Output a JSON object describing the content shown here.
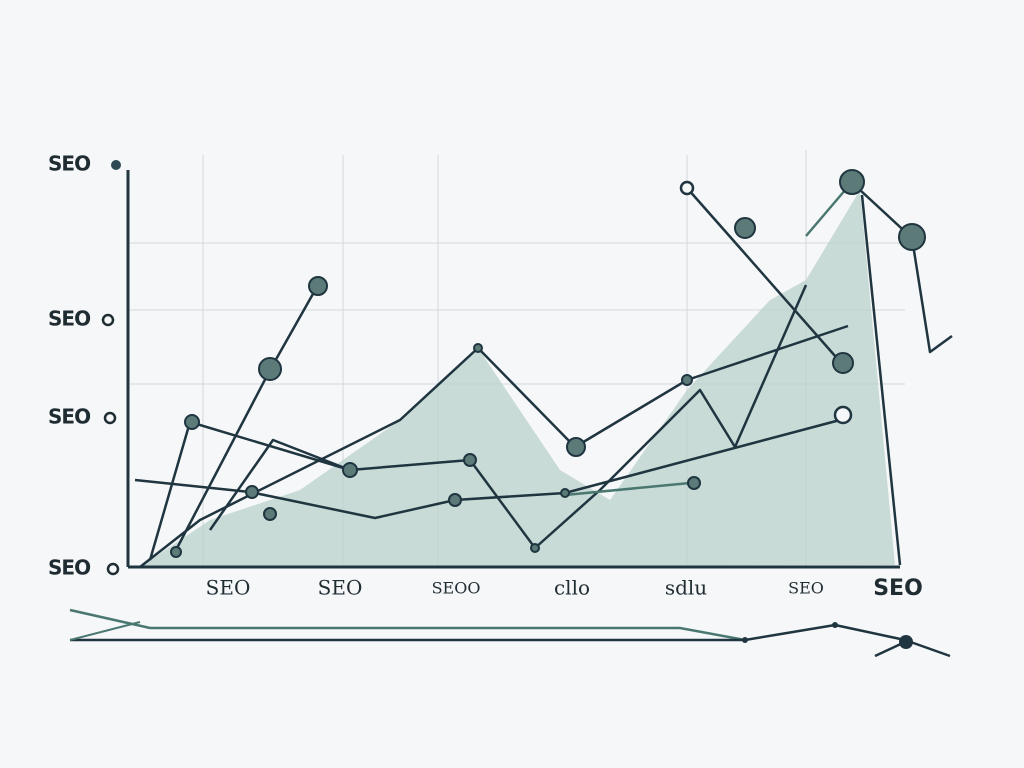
{
  "y_labels": [
    "SEO",
    "SEO",
    "SEO",
    "SEO"
  ],
  "x_labels": [
    "SEO",
    "SEO",
    "SEOO",
    "cllo",
    "sdlu",
    "SEO",
    "SEO"
  ]
}
